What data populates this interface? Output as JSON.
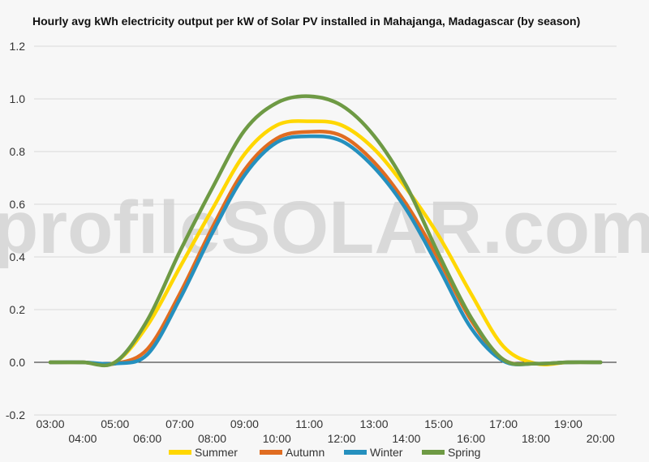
{
  "chart_data": {
    "type": "line",
    "title": "Hourly avg kWh electricity output per kW of Solar PV installed in Mahajanga, Madagascar (by season)",
    "watermark": "profileSOLAR.com",
    "xlabel": "",
    "ylabel": "",
    "ylim": [
      -0.2,
      1.2
    ],
    "yticks": [
      "-0.2",
      "0.0",
      "0.2",
      "0.4",
      "0.6",
      "0.8",
      "1.0",
      "1.2"
    ],
    "yticks_values": [
      -0.2,
      0.0,
      0.2,
      0.4,
      0.6,
      0.8,
      1.0,
      1.2
    ],
    "categories": [
      "03:00",
      "04:00",
      "05:00",
      "06:00",
      "07:00",
      "08:00",
      "09:00",
      "10:00",
      "11:00",
      "12:00",
      "13:00",
      "14:00",
      "15:00",
      "16:00",
      "17:00",
      "18:00",
      "19:00",
      "20:00"
    ],
    "grid": true,
    "legend_position": "bottom",
    "series": [
      {
        "name": "Summer",
        "color": "#FFD700",
        "values": [
          0,
          0,
          0,
          0.14,
          0.36,
          0.58,
          0.79,
          0.9,
          0.915,
          0.9,
          0.81,
          0.66,
          0.48,
          0.26,
          0.06,
          -0.005,
          0,
          0
        ]
      },
      {
        "name": "Autumn",
        "color": "#E06C21",
        "values": [
          0,
          0,
          -0.005,
          0.05,
          0.26,
          0.51,
          0.73,
          0.85,
          0.875,
          0.86,
          0.76,
          0.6,
          0.39,
          0.16,
          0.01,
          -0.005,
          0,
          0
        ]
      },
      {
        "name": "Winter",
        "color": "#2590BE",
        "values": [
          0,
          0,
          -0.005,
          0.03,
          0.24,
          0.49,
          0.71,
          0.835,
          0.858,
          0.84,
          0.74,
          0.58,
          0.36,
          0.13,
          0.005,
          -0.005,
          0,
          0
        ]
      },
      {
        "name": "Spring",
        "color": "#6E9A44",
        "values": [
          0,
          0,
          0,
          0.16,
          0.42,
          0.66,
          0.88,
          0.985,
          1.01,
          0.975,
          0.86,
          0.67,
          0.41,
          0.17,
          0.01,
          -0.005,
          0,
          0
        ]
      }
    ]
  }
}
